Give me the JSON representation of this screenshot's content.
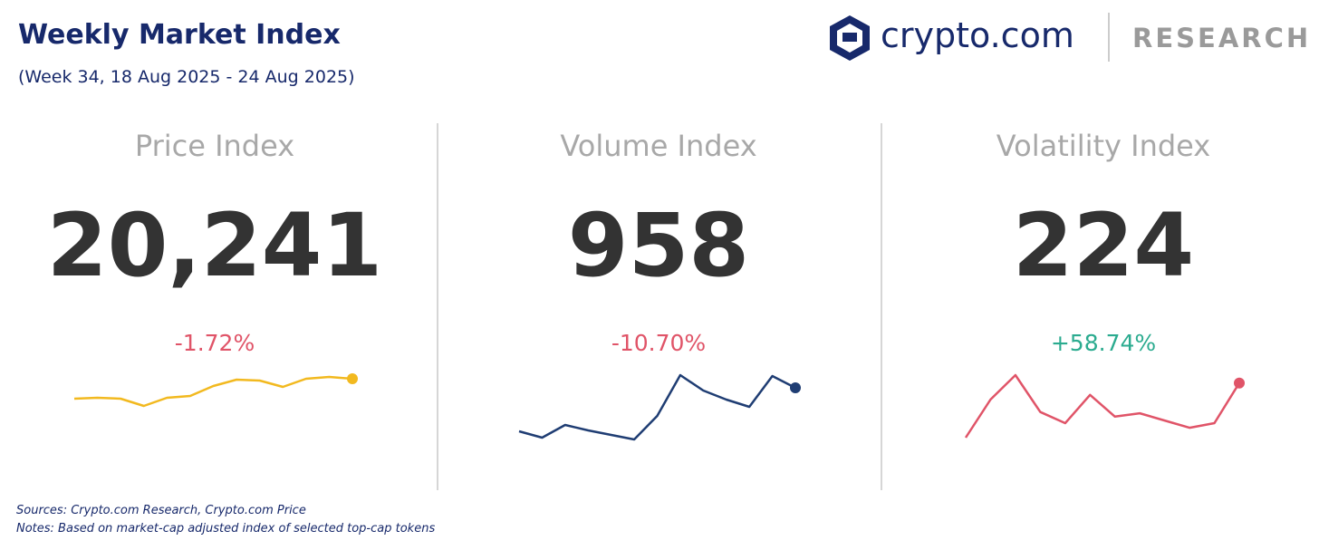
{
  "header": {
    "title": "Weekly Market Index",
    "subtitle": "(Week 34, 18 Aug 2025 - 24 Aug 2025)",
    "brand": "crypto.com",
    "section": "RESEARCH"
  },
  "panels": [
    {
      "title": "Price Index",
      "value": "20,241",
      "change": "-1.72%",
      "change_color": "#e05468",
      "chart_data": {
        "type": "line",
        "color": "#f2b91f",
        "values": [
          19801,
          19821,
          19801,
          19641,
          19821,
          19861,
          20081,
          20221,
          20201,
          20061,
          20241,
          20281,
          20241
        ]
      }
    },
    {
      "title": "Volume Index",
      "value": "958",
      "change": "-10.70%",
      "change_color": "#e05468",
      "chart_data": {
        "type": "line",
        "color": "#1f3d73",
        "values": [
          718,
          683,
          753,
          723,
          698,
          673,
          803,
          1028,
          943,
          893,
          853,
          1023,
          958
        ]
      }
    },
    {
      "title": "Volatility Index",
      "value": "224",
      "change": "+58.74%",
      "change_color": "#2bab8f",
      "chart_data": {
        "type": "line",
        "color": "#e05468",
        "values": [
          141,
          199,
          236,
          180,
          163,
          206,
          173,
          178,
          167,
          156,
          163,
          224
        ]
      }
    }
  ],
  "footer": {
    "sources": "Sources: Crypto.com Research,  Crypto.com Price",
    "notes": "Notes: Based on market-cap adjusted index of selected top-cap tokens"
  }
}
